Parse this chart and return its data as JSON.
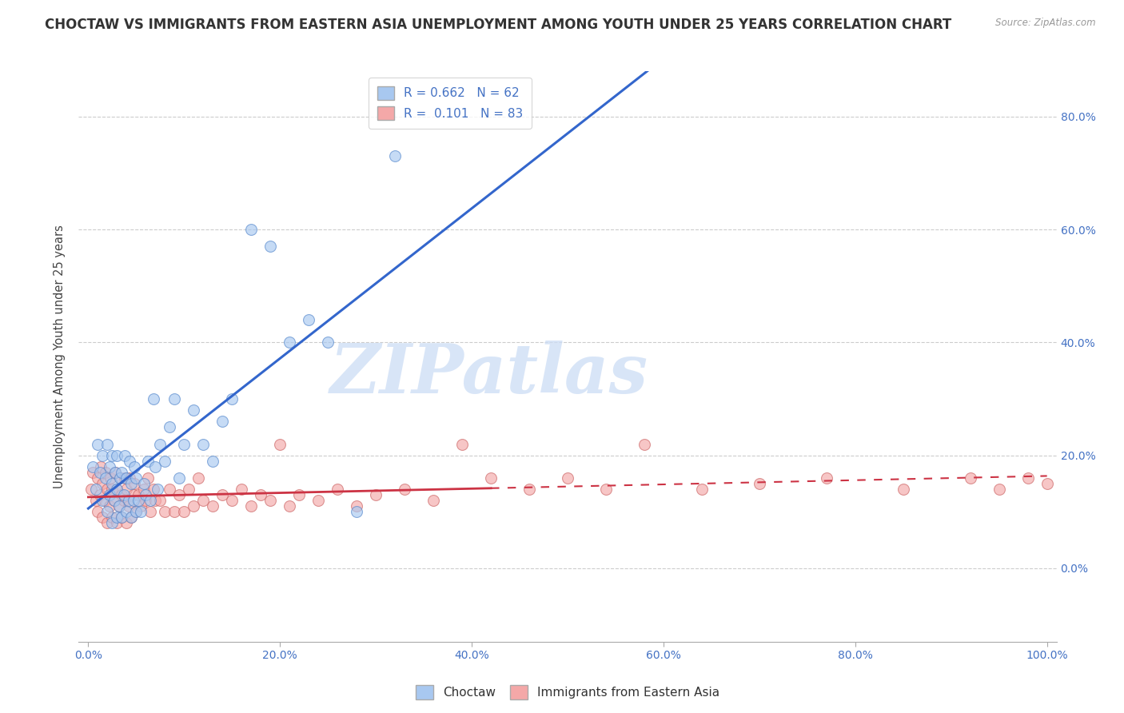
{
  "title": "CHOCTAW VS IMMIGRANTS FROM EASTERN ASIA UNEMPLOYMENT AMONG YOUTH UNDER 25 YEARS CORRELATION CHART",
  "source": "Source: ZipAtlas.com",
  "ylabel": "Unemployment Among Youth under 25 years",
  "watermark": "ZIPatlas",
  "xlim": [
    -0.01,
    1.01
  ],
  "ylim": [
    -0.13,
    0.88
  ],
  "yticks": [
    0.0,
    0.2,
    0.4,
    0.6,
    0.8
  ],
  "ytick_labels_right": [
    "0.0%",
    "20.0%",
    "40.0%",
    "60.0%",
    "80.0%"
  ],
  "xticks": [
    0.0,
    0.2,
    0.4,
    0.6,
    0.8,
    1.0
  ],
  "xtick_labels": [
    "0.0%",
    "20.0%",
    "40.0%",
    "60.0%",
    "80.0%",
    "100.0%"
  ],
  "choctaw_color": "#a8c8f0",
  "choctaw_edge": "#5588cc",
  "immigrants_color": "#f4a8a8",
  "immigrants_edge": "#cc6666",
  "choctaw_line_color": "#3366cc",
  "immigrants_line_solid_color": "#cc3344",
  "immigrants_line_dash_color": "#cc3344",
  "legend_label1": "R = 0.662   N = 62",
  "legend_label2": "R =  0.101   N = 83",
  "choctaw_x": [
    0.005,
    0.008,
    0.01,
    0.012,
    0.015,
    0.015,
    0.018,
    0.02,
    0.02,
    0.022,
    0.022,
    0.025,
    0.025,
    0.025,
    0.027,
    0.028,
    0.03,
    0.03,
    0.03,
    0.032,
    0.033,
    0.035,
    0.035,
    0.037,
    0.038,
    0.04,
    0.04,
    0.042,
    0.043,
    0.045,
    0.045,
    0.047,
    0.048,
    0.05,
    0.05,
    0.052,
    0.055,
    0.058,
    0.06,
    0.062,
    0.065,
    0.068,
    0.07,
    0.072,
    0.075,
    0.08,
    0.085,
    0.09,
    0.095,
    0.1,
    0.11,
    0.12,
    0.13,
    0.14,
    0.15,
    0.17,
    0.19,
    0.21,
    0.23,
    0.25,
    0.28,
    0.32
  ],
  "choctaw_y": [
    0.18,
    0.14,
    0.22,
    0.17,
    0.12,
    0.2,
    0.16,
    0.1,
    0.22,
    0.13,
    0.18,
    0.08,
    0.15,
    0.2,
    0.12,
    0.17,
    0.09,
    0.14,
    0.2,
    0.11,
    0.16,
    0.09,
    0.17,
    0.13,
    0.2,
    0.1,
    0.16,
    0.12,
    0.19,
    0.09,
    0.15,
    0.12,
    0.18,
    0.1,
    0.16,
    0.12,
    0.1,
    0.15,
    0.13,
    0.19,
    0.12,
    0.3,
    0.18,
    0.14,
    0.22,
    0.19,
    0.25,
    0.3,
    0.16,
    0.22,
    0.28,
    0.22,
    0.19,
    0.26,
    0.3,
    0.6,
    0.57,
    0.4,
    0.44,
    0.4,
    0.1,
    0.73
  ],
  "immigrants_x": [
    0.003,
    0.005,
    0.008,
    0.01,
    0.01,
    0.012,
    0.013,
    0.015,
    0.015,
    0.017,
    0.018,
    0.02,
    0.02,
    0.022,
    0.023,
    0.025,
    0.025,
    0.027,
    0.028,
    0.03,
    0.03,
    0.032,
    0.033,
    0.035,
    0.035,
    0.037,
    0.038,
    0.04,
    0.04,
    0.042,
    0.043,
    0.045,
    0.047,
    0.048,
    0.05,
    0.052,
    0.055,
    0.058,
    0.06,
    0.062,
    0.065,
    0.068,
    0.07,
    0.075,
    0.08,
    0.085,
    0.09,
    0.095,
    0.1,
    0.105,
    0.11,
    0.115,
    0.12,
    0.13,
    0.14,
    0.15,
    0.16,
    0.17,
    0.18,
    0.19,
    0.2,
    0.21,
    0.22,
    0.24,
    0.26,
    0.28,
    0.3,
    0.33,
    0.36,
    0.39,
    0.42,
    0.46,
    0.5,
    0.54,
    0.58,
    0.64,
    0.7,
    0.77,
    0.85,
    0.92,
    0.95,
    0.98,
    1.0
  ],
  "immigrants_y": [
    0.14,
    0.17,
    0.12,
    0.1,
    0.16,
    0.13,
    0.18,
    0.09,
    0.15,
    0.12,
    0.17,
    0.08,
    0.14,
    0.11,
    0.16,
    0.09,
    0.14,
    0.12,
    0.17,
    0.08,
    0.14,
    0.11,
    0.16,
    0.09,
    0.13,
    0.12,
    0.16,
    0.08,
    0.14,
    0.11,
    0.16,
    0.09,
    0.13,
    0.15,
    0.1,
    0.13,
    0.11,
    0.14,
    0.12,
    0.16,
    0.1,
    0.14,
    0.12,
    0.12,
    0.1,
    0.14,
    0.1,
    0.13,
    0.1,
    0.14,
    0.11,
    0.16,
    0.12,
    0.11,
    0.13,
    0.12,
    0.14,
    0.11,
    0.13,
    0.12,
    0.22,
    0.11,
    0.13,
    0.12,
    0.14,
    0.11,
    0.13,
    0.14,
    0.12,
    0.22,
    0.16,
    0.14,
    0.16,
    0.14,
    0.22,
    0.14,
    0.15,
    0.16,
    0.14,
    0.16,
    0.14,
    0.16,
    0.15
  ],
  "background_color": "#ffffff",
  "grid_color": "#cccccc",
  "title_fontsize": 12,
  "axis_fontsize": 10.5,
  "tick_fontsize": 10,
  "tick_color": "#4472c4"
}
